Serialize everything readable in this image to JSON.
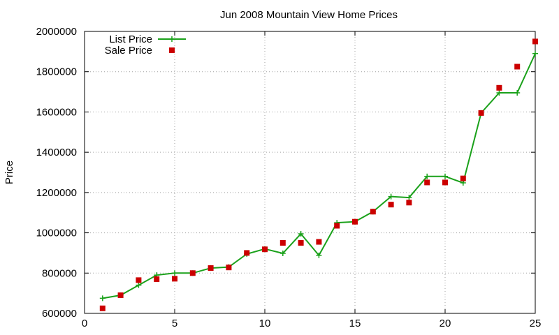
{
  "chart_data": {
    "type": "line",
    "title": "Jun 2008 Mountain View Home Prices",
    "xlabel": "",
    "ylabel": "Price",
    "xlim": [
      0,
      25
    ],
    "ylim": [
      600000,
      2000000
    ],
    "xticks": [
      0,
      5,
      10,
      15,
      20,
      25
    ],
    "yticks": [
      600000,
      800000,
      1000000,
      1200000,
      1400000,
      1600000,
      1800000,
      2000000
    ],
    "grid": true,
    "legend_position": "top-left",
    "series": [
      {
        "name": "List Price",
        "style": "line-with-plus-markers",
        "color": "#1aa11a",
        "x": [
          1,
          2,
          3,
          4,
          5,
          6,
          7,
          8,
          9,
          10,
          11,
          12,
          13,
          14,
          15,
          16,
          17,
          18,
          19,
          20,
          21,
          22,
          23,
          24,
          25
        ],
        "y": [
          675000,
          690000,
          740000,
          790000,
          800000,
          800000,
          825000,
          830000,
          895000,
          920000,
          898000,
          995000,
          888000,
          1050000,
          1055000,
          1105000,
          1180000,
          1175000,
          1280000,
          1280000,
          1248000,
          1595000,
          1695000,
          1695000,
          1890000
        ]
      },
      {
        "name": "Sale Price",
        "style": "square-markers",
        "color": "#cc0000",
        "x": [
          1,
          2,
          3,
          4,
          5,
          6,
          7,
          8,
          9,
          10,
          11,
          12,
          13,
          14,
          15,
          16,
          17,
          18,
          19,
          20,
          21,
          22,
          23,
          24,
          25
        ],
        "y": [
          625000,
          690000,
          765000,
          770000,
          772000,
          800000,
          825000,
          828000,
          900000,
          918000,
          950000,
          950000,
          955000,
          1035000,
          1055000,
          1105000,
          1140000,
          1150000,
          1250000,
          1250000,
          1270000,
          1595000,
          1720000,
          1825000,
          1950000
        ]
      }
    ]
  }
}
